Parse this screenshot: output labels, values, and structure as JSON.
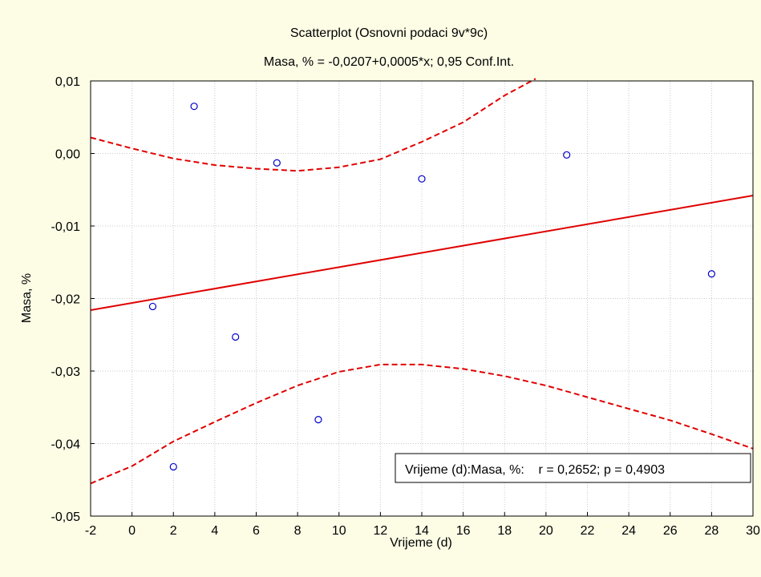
{
  "chart_data": {
    "type": "scatter",
    "title": "Scatterplot (Osnovni podaci 9v*9c)",
    "subtitle": "Masa, % = -0,0207+0,0005*x; 0,95 Conf.Int.",
    "xlabel": "Vrijeme (d)",
    "ylabel": "Masa, %",
    "xlim": [
      -2,
      30
    ],
    "ylim": [
      -0.05,
      0.01
    ],
    "x_ticks": [
      -2,
      0,
      2,
      4,
      6,
      8,
      10,
      12,
      14,
      16,
      18,
      20,
      22,
      24,
      26,
      28,
      30
    ],
    "x_tick_labels": [
      "-2",
      "0",
      "2",
      "4",
      "6",
      "8",
      "10",
      "12",
      "14",
      "16",
      "18",
      "20",
      "22",
      "24",
      "26",
      "28",
      "30"
    ],
    "y_ticks": [
      0.01,
      0.0,
      -0.01,
      -0.02,
      -0.03,
      -0.04,
      -0.05
    ],
    "y_tick_labels": [
      "0,01",
      "0,00",
      "-0,01",
      "-0,02",
      "-0,03",
      "-0,04",
      "-0,05"
    ],
    "grid": true,
    "points": [
      {
        "x": 1,
        "y": -0.0211
      },
      {
        "x": 2,
        "y": -0.0432
      },
      {
        "x": 3,
        "y": 0.0065
      },
      {
        "x": 5,
        "y": -0.0253
      },
      {
        "x": 7,
        "y": -0.0013
      },
      {
        "x": 9,
        "y": -0.0367
      },
      {
        "x": 14,
        "y": -0.0035
      },
      {
        "x": 21,
        "y": -0.0002
      },
      {
        "x": 28,
        "y": -0.0166
      }
    ],
    "regression_line": {
      "x": [
        -2,
        30
      ],
      "y": [
        -0.0216,
        -0.0058
      ]
    },
    "conf_upper": {
      "x": [
        -2,
        0,
        2,
        4,
        6,
        8,
        10,
        12,
        14,
        16,
        18,
        19.5
      ],
      "y": [
        0.0022,
        0.0007,
        -0.0007,
        -0.0016,
        -0.0021,
        -0.0024,
        -0.0019,
        -0.0008,
        0.0016,
        0.0043,
        0.008,
        0.0103
      ]
    },
    "conf_lower": {
      "x": [
        -2,
        0,
        2,
        4,
        6,
        8,
        10,
        12,
        14,
        16,
        18,
        20,
        22,
        24,
        26,
        28,
        30
      ],
      "y": [
        -0.0455,
        -0.0431,
        -0.0397,
        -0.037,
        -0.0344,
        -0.032,
        -0.0301,
        -0.0291,
        -0.0291,
        -0.0297,
        -0.0307,
        -0.032,
        -0.0336,
        -0.0352,
        -0.0368,
        -0.0387,
        -0.0407
      ]
    },
    "annotation": "Vrijeme (d):Masa, %:    r = 0,2652; p = 0,4903",
    "colors": {
      "points": "#0000cc",
      "regression": "#e00000",
      "confidence": "#e00000",
      "background": "#fdfde6",
      "plot_area": "#ffffff"
    }
  }
}
